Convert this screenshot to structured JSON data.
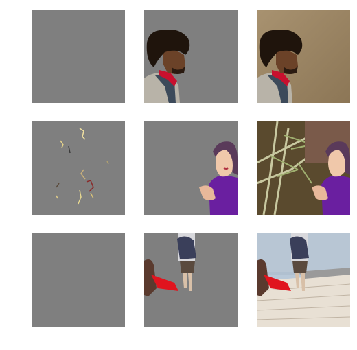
{
  "grid": {
    "rows": [
      {
        "row_id": "row-1",
        "cells": [
          "blank-mask",
          "person-cutout",
          "original-photo"
        ]
      },
      {
        "row_id": "row-2",
        "cells": [
          "sparse-mask",
          "person-cutout",
          "original-photo"
        ]
      },
      {
        "row_id": "row-3",
        "cells": [
          "blank-mask",
          "person-cutout",
          "original-photo"
        ]
      }
    ],
    "colors": {
      "mask_gray": "#7f7f7f",
      "background": "#ffffff"
    }
  }
}
